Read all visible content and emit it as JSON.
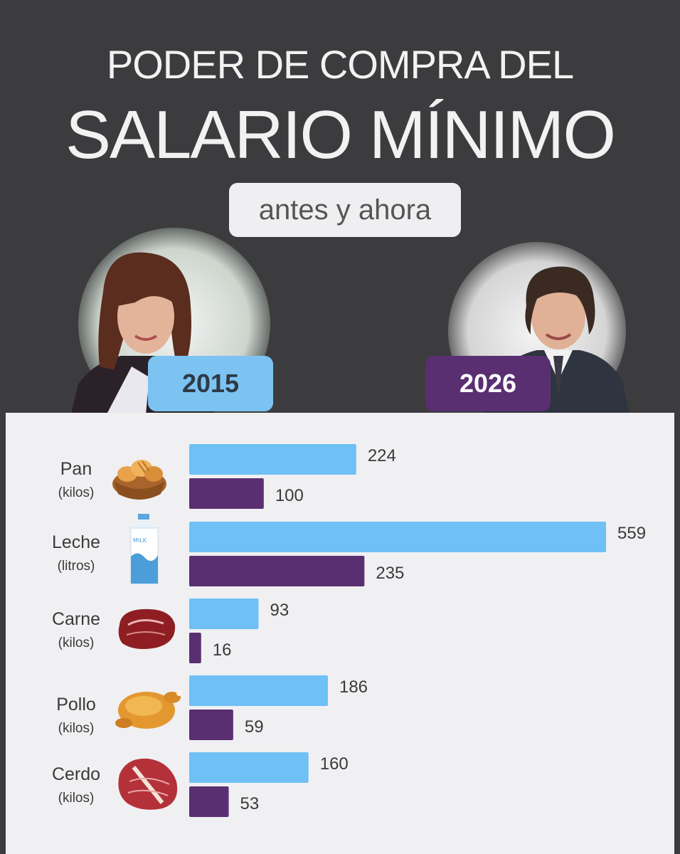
{
  "header": {
    "title_line1": "PODER DE COMPRA DEL",
    "title_line2": "SALARIO MÍNIMO",
    "subtitle": "antes y ahora"
  },
  "years": {
    "left": "2015",
    "right": "2026"
  },
  "colors": {
    "background": "#3c3c3e",
    "series_2015": "#6ec0f5",
    "series_2026": "#5a2f72",
    "panel": "#f0f0f2"
  },
  "chart_data": {
    "type": "bar",
    "orientation": "horizontal",
    "categories": [
      "Pan",
      "Leche",
      "Carne",
      "Pollo",
      "Cerdo"
    ],
    "units": [
      "(kilos)",
      "(litros)",
      "(kilos)",
      "(kilos)",
      "(kilos)"
    ],
    "icons": [
      "bread-basket-icon",
      "milk-carton-icon",
      "beef-icon",
      "chicken-icon",
      "pork-steak-icon"
    ],
    "series": [
      {
        "name": "2015",
        "values": [
          224,
          559,
          93,
          186,
          160
        ]
      },
      {
        "name": "2026",
        "values": [
          100,
          235,
          16,
          59,
          53
        ]
      }
    ],
    "xlim": [
      0,
      559
    ],
    "grid": false,
    "legend": "none"
  }
}
